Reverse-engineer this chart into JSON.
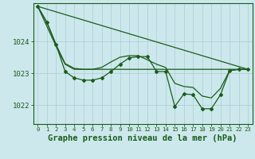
{
  "bg_color": "#cce8ec",
  "grid_color": "#aaccd4",
  "line_color": "#1a5c1a",
  "title": "Graphe pression niveau de la mer (hPa)",
  "ylim": [
    1021.4,
    1025.2
  ],
  "xlim": [
    -0.5,
    23.5
  ],
  "yticks": [
    1022,
    1023,
    1024
  ],
  "xticks": [
    0,
    1,
    2,
    3,
    4,
    5,
    6,
    7,
    8,
    9,
    10,
    11,
    12,
    13,
    14,
    15,
    16,
    17,
    18,
    19,
    20,
    21,
    22,
    23
  ],
  "line1_x": [
    0,
    1,
    2,
    3,
    4,
    5,
    6,
    7,
    8,
    9,
    10,
    11,
    12,
    13,
    14,
    15,
    16,
    17,
    18,
    19,
    20,
    21,
    22,
    23
  ],
  "line1_y": [
    1025.1,
    1024.6,
    1023.9,
    1023.05,
    1022.85,
    1022.78,
    1022.78,
    1022.85,
    1023.05,
    1023.28,
    1023.48,
    1023.52,
    1023.52,
    1023.05,
    1023.05,
    1021.95,
    1022.35,
    1022.32,
    1021.88,
    1021.88,
    1022.32,
    1023.08,
    1023.12,
    1023.12
  ],
  "line2_x": [
    0,
    23
  ],
  "line2_y": [
    1025.1,
    1023.12
  ],
  "line3_x": [
    0,
    1,
    2,
    3,
    4,
    5,
    6,
    7,
    8,
    9,
    10,
    11,
    12,
    13,
    14,
    15,
    16,
    17,
    18,
    19,
    20,
    21,
    22,
    23
  ],
  "line3_y": [
    1025.1,
    1024.6,
    1023.9,
    1023.3,
    1023.15,
    1023.12,
    1023.12,
    1023.18,
    1023.35,
    1023.5,
    1023.55,
    1023.55,
    1023.42,
    1023.28,
    1023.18,
    1022.68,
    1022.58,
    1022.55,
    1022.28,
    1022.22,
    1022.52,
    1023.08,
    1023.12,
    1023.12
  ],
  "line4_x": [
    0,
    1,
    2,
    3,
    4,
    5,
    6,
    7,
    8,
    9,
    10,
    11,
    12,
    13,
    14,
    15,
    16,
    17,
    18,
    19,
    20,
    21,
    22,
    23
  ],
  "line4_y": [
    1025.1,
    1024.6,
    1023.9,
    1023.3,
    1023.12,
    1023.12,
    1023.12,
    1023.12,
    1023.3,
    1023.5,
    1023.55,
    1023.55,
    1023.55,
    1023.3,
    1023.3,
    1023.12,
    1023.12,
    1023.12,
    1023.12,
    1023.12,
    1023.12,
    1023.12,
    1023.12,
    1023.12
  ]
}
